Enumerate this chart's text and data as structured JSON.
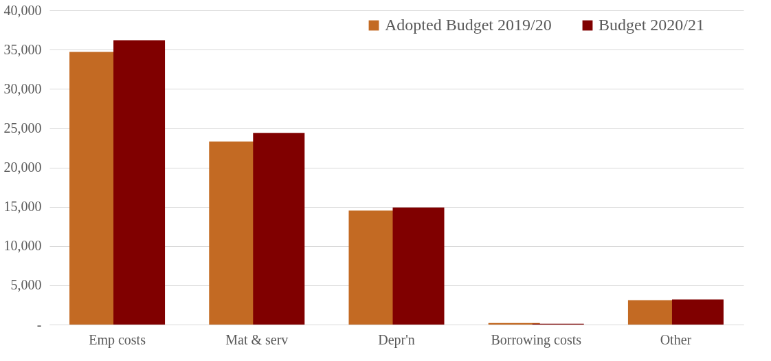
{
  "chart_data": {
    "type": "bar",
    "categories": [
      "Emp costs",
      "Mat & serv",
      "Depr'n",
      "Borrowing costs",
      "Other"
    ],
    "series": [
      {
        "name": "Adopted Budget 2019/20",
        "color": "#c36a23",
        "values": [
          34700,
          23300,
          14500,
          200,
          3100
        ]
      },
      {
        "name": "Budget 2020/21",
        "color": "#800000",
        "values": [
          36200,
          24400,
          14900,
          100,
          3200
        ]
      }
    ],
    "ylim": [
      0,
      40000
    ],
    "yticks": [
      {
        "value": 0,
        "label": "-"
      },
      {
        "value": 5000,
        "label": "5,000"
      },
      {
        "value": 10000,
        "label": "10,000"
      },
      {
        "value": 15000,
        "label": "15,000"
      },
      {
        "value": 20000,
        "label": "20,000"
      },
      {
        "value": 25000,
        "label": "25,000"
      },
      {
        "value": 30000,
        "label": "30,000"
      },
      {
        "value": 35000,
        "label": "35,000"
      },
      {
        "value": 40000,
        "label": "40,000"
      }
    ],
    "grid": "y",
    "legend": "top right"
  }
}
